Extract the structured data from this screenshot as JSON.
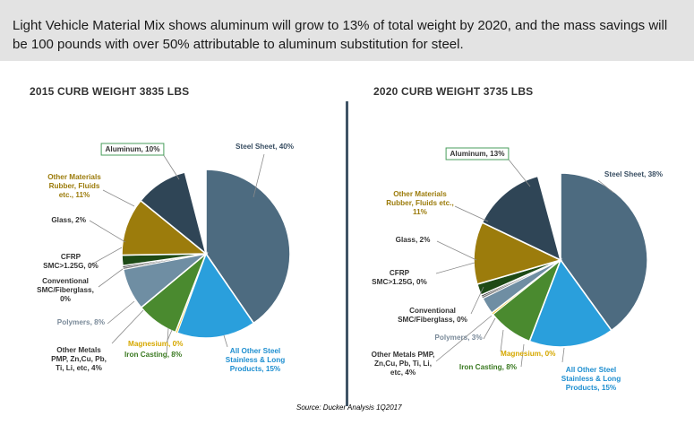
{
  "header": {
    "text": "Light Vehicle Material Mix shows aluminum will grow to 13% of total weight by 2020, and the mass savings will be 100 pounds  with over 50% attributable to aluminum substitution for steel."
  },
  "source": "Source: Ducker Analysis 1Q2017",
  "colors": {
    "steel_sheet": "#4d6b80",
    "all_other_steel": "#2a9fdc",
    "iron_casting": "#4a8a2f",
    "magnesium": "#f2c21a",
    "polymers": "#6f8ea3",
    "conventional_smc": "#7f7f7f",
    "cfrp": "#2a2a2a",
    "glass": "#1e4a16",
    "other_materials": "#9c7c0c",
    "aluminum": "#2f4556"
  },
  "chart_data": [
    {
      "type": "pie",
      "title": "2015 CURB WEIGHT 3835 LBS",
      "slices": [
        {
          "key": "steel_sheet",
          "label": "Steel Sheet, 40%",
          "value": 40
        },
        {
          "key": "all_other_steel",
          "label": "All Other Steel Stainless & Long Products, 15%",
          "value": 15
        },
        {
          "key": "magnesium",
          "label": "Magnesium, 0%",
          "value": 0
        },
        {
          "key": "iron_casting",
          "label": "Iron Casting, 8%",
          "value": 8
        },
        {
          "key": "other_metals",
          "label": "Other Metals PMP, Zn,Cu, Pb, Ti, Li, etc, 4%",
          "value": 4
        },
        {
          "key": "polymers",
          "label": "Polymers, 8%",
          "value": 8
        },
        {
          "key": "conventional_smc",
          "label": "Conventional SMC/Fiberglass, 0%",
          "value": 0
        },
        {
          "key": "cfrp",
          "label": "CFRP SMC>1.25G, 0%",
          "value": 0
        },
        {
          "key": "glass",
          "label": "Glass, 2%",
          "value": 2
        },
        {
          "key": "other_materials",
          "label": "Other Materials Rubber, Fluids etc., 11%",
          "value": 11
        },
        {
          "key": "aluminum",
          "label": "Aluminum, 10%",
          "value": 10
        }
      ]
    },
    {
      "type": "pie",
      "title": "2020 CURB WEIGHT 3735 LBS",
      "slices": [
        {
          "key": "steel_sheet",
          "label": "Steel Sheet, 38%",
          "value": 38
        },
        {
          "key": "all_other_steel",
          "label": "All Other Steel Stainless & Long Products, 15%",
          "value": 15
        },
        {
          "key": "iron_casting",
          "label": "Iron Casting, 8%",
          "value": 8
        },
        {
          "key": "magnesium",
          "label": "Magnesium, 0%",
          "value": 0
        },
        {
          "key": "other_metals",
          "label": "Other Metals PMP, Zn,Cu, Pb, Ti, Li, etc, 4%",
          "value": 4
        },
        {
          "key": "polymers",
          "label": "Polymers, 3%",
          "value": 3
        },
        {
          "key": "conventional_smc",
          "label": "Conventional SMC/Fiberglass, 0%",
          "value": 0
        },
        {
          "key": "cfrp",
          "label": "CFRP SMC>1.25G, 0%",
          "value": 0
        },
        {
          "key": "glass",
          "label": "Glass, 2%",
          "value": 2
        },
        {
          "key": "other_materials",
          "label": "Other Materials Rubber, Fluids etc., 11%",
          "value": 11
        },
        {
          "key": "aluminum",
          "label": "Aluminum, 13%",
          "value": 13
        }
      ]
    }
  ]
}
